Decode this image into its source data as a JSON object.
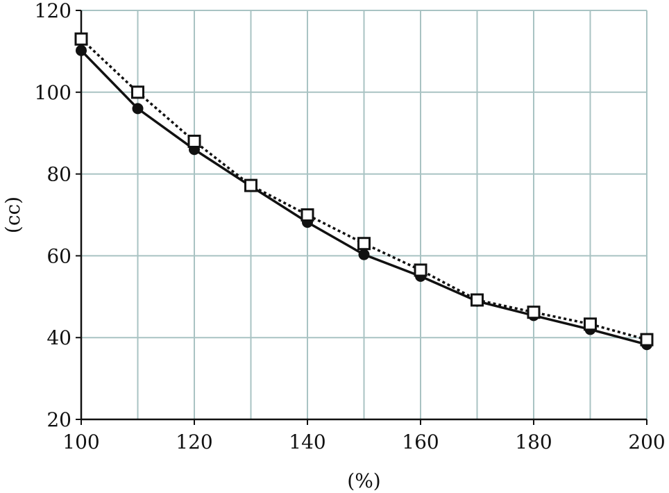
{
  "chart_data": {
    "type": "line",
    "xlabel": "(%)",
    "ylabel": "(cc)",
    "xlim": [
      100,
      200
    ],
    "ylim": [
      20,
      120
    ],
    "xticks": [
      100,
      120,
      140,
      160,
      180,
      200
    ],
    "yticks": [
      20,
      40,
      60,
      80,
      100,
      120
    ],
    "x_gridlines": [
      100,
      110,
      120,
      130,
      140,
      150,
      160,
      170,
      180,
      190,
      200
    ],
    "y_gridlines": [
      20,
      40,
      60,
      80,
      100,
      120
    ],
    "grid": true,
    "legend": "none",
    "x": [
      100,
      110,
      120,
      130,
      140,
      150,
      160,
      170,
      180,
      190,
      200
    ],
    "series": [
      {
        "values": [
          110.2,
          96.0,
          86.0,
          77.0,
          68.2,
          60.3,
          55.0,
          48.9,
          45.4,
          42.0,
          38.3
        ],
        "marker": "filled-circle",
        "line_style": "solid",
        "color": "#111111"
      },
      {
        "values": [
          113.0,
          100.0,
          88.0,
          77.2,
          70.0,
          63.0,
          56.5,
          49.2,
          46.2,
          43.3,
          39.5
        ],
        "marker": "open-square",
        "line_style": "dotted",
        "color": "#111111"
      }
    ],
    "colors": {
      "grid": "#a9c3c3",
      "axis": "#111111",
      "marker_fill_open": "#ffffff"
    }
  }
}
